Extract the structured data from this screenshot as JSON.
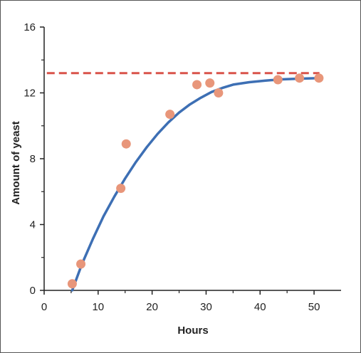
{
  "chart_data": {
    "type": "scatter",
    "title": "",
    "xlabel": "Hours",
    "ylabel": "Amount of yeast",
    "xlim": [
      0,
      55
    ],
    "ylim": [
      0,
      16
    ],
    "grid": false,
    "x_ticks": [
      "0",
      "10",
      "20",
      "30",
      "40",
      "50"
    ],
    "y_ticks": [
      "0",
      "4",
      "8",
      "12",
      "16"
    ],
    "carrying_capacity": 13.2,
    "points": [
      {
        "x": 5.2,
        "y": 0.4
      },
      {
        "x": 6.8,
        "y": 1.6
      },
      {
        "x": 14.2,
        "y": 6.2
      },
      {
        "x": 15.2,
        "y": 8.9
      },
      {
        "x": 23.3,
        "y": 10.7
      },
      {
        "x": 28.3,
        "y": 12.5
      },
      {
        "x": 30.7,
        "y": 12.6
      },
      {
        "x": 32.3,
        "y": 12.0
      },
      {
        "x": 43.3,
        "y": 12.8
      },
      {
        "x": 47.3,
        "y": 12.9
      },
      {
        "x": 50.9,
        "y": 12.9
      }
    ],
    "fit_curve": [
      {
        "x": 5.2,
        "y": 0.0
      },
      {
        "x": 7,
        "y": 1.6
      },
      {
        "x": 9,
        "y": 3.1
      },
      {
        "x": 11,
        "y": 4.5
      },
      {
        "x": 13,
        "y": 5.7
      },
      {
        "x": 15,
        "y": 6.8
      },
      {
        "x": 17,
        "y": 7.8
      },
      {
        "x": 19,
        "y": 8.7
      },
      {
        "x": 21,
        "y": 9.5
      },
      {
        "x": 23,
        "y": 10.2
      },
      {
        "x": 25,
        "y": 10.8
      },
      {
        "x": 27,
        "y": 11.3
      },
      {
        "x": 29,
        "y": 11.7
      },
      {
        "x": 31,
        "y": 12.05
      },
      {
        "x": 33,
        "y": 12.3
      },
      {
        "x": 35,
        "y": 12.5
      },
      {
        "x": 38,
        "y": 12.65
      },
      {
        "x": 41,
        "y": 12.75
      },
      {
        "x": 44,
        "y": 12.82
      },
      {
        "x": 47,
        "y": 12.86
      },
      {
        "x": 51,
        "y": 12.9
      }
    ],
    "colors": {
      "points": "#e8967a",
      "curve": "#3d6fb4",
      "capacity_line": "#d9534a",
      "axes": "#222222"
    }
  }
}
